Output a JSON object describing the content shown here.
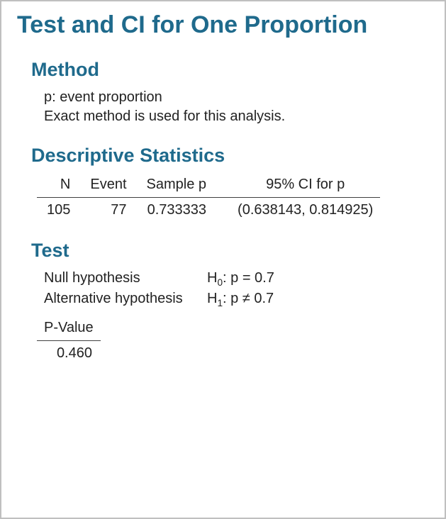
{
  "colors": {
    "heading": "#1f6a8c",
    "text": "#222222",
    "rule": "#404040",
    "frame_border": "#bfbfbf",
    "background": "#ffffff"
  },
  "typography": {
    "title_fontsize": 34,
    "section_fontsize": 27,
    "body_fontsize": 20,
    "font_family": "Segoe UI"
  },
  "title": "Test and CI for One Proportion",
  "method": {
    "heading": "Method",
    "lines": [
      "p: event proportion",
      "Exact method is used for this analysis."
    ]
  },
  "descriptive": {
    "heading": "Descriptive Statistics",
    "type": "table",
    "columns": [
      "N",
      "Event",
      "Sample p",
      "95% CI for p"
    ],
    "rows": [
      [
        "105",
        "77",
        "0.733333",
        "(0.638143, 0.814925)"
      ]
    ]
  },
  "test": {
    "heading": "Test",
    "hypotheses": [
      {
        "label": "Null hypothesis",
        "symbol_sub": "0",
        "expr": "p = 0.7"
      },
      {
        "label": "Alternative hypothesis",
        "symbol_sub": "1",
        "expr": "p ≠ 0.7"
      }
    ],
    "pvalue": {
      "label": "P-Value",
      "value": "0.460"
    }
  }
}
